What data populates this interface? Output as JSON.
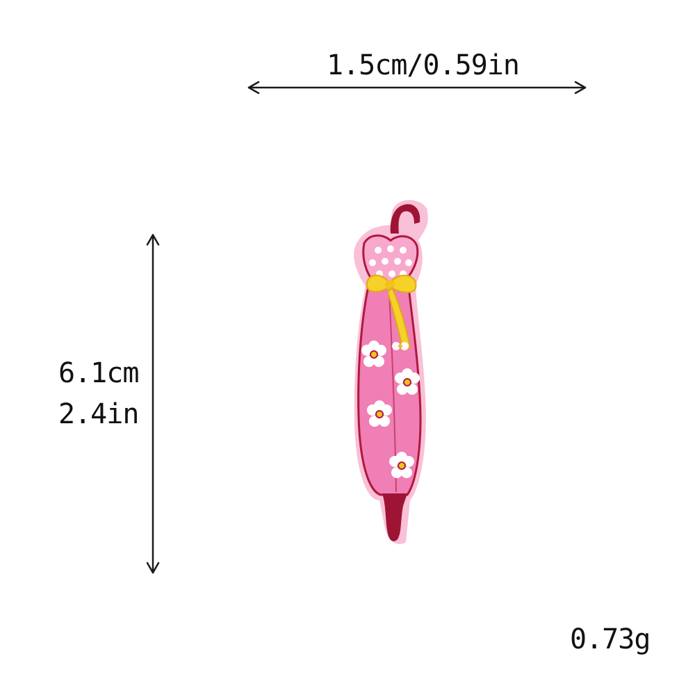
{
  "dimensions": {
    "width_label": "1.5cm/0.59in",
    "height_cm": "6.1cm",
    "height_in": "2.4in",
    "weight": "0.73g"
  },
  "product": {
    "subject": "embroidered umbrella patch",
    "colors": {
      "body": "#ef7fb4",
      "body_light": "#f7a8cc",
      "outline": "#b0183c",
      "handle": "#9e1435",
      "ribbon": "#f5d12a",
      "ribbon_shadow": "#e0a818",
      "flower": "#ffffff",
      "flower_center": "#f2c21c",
      "border": "#f9c0d8"
    }
  },
  "arrow_color": "#1a1a1a"
}
